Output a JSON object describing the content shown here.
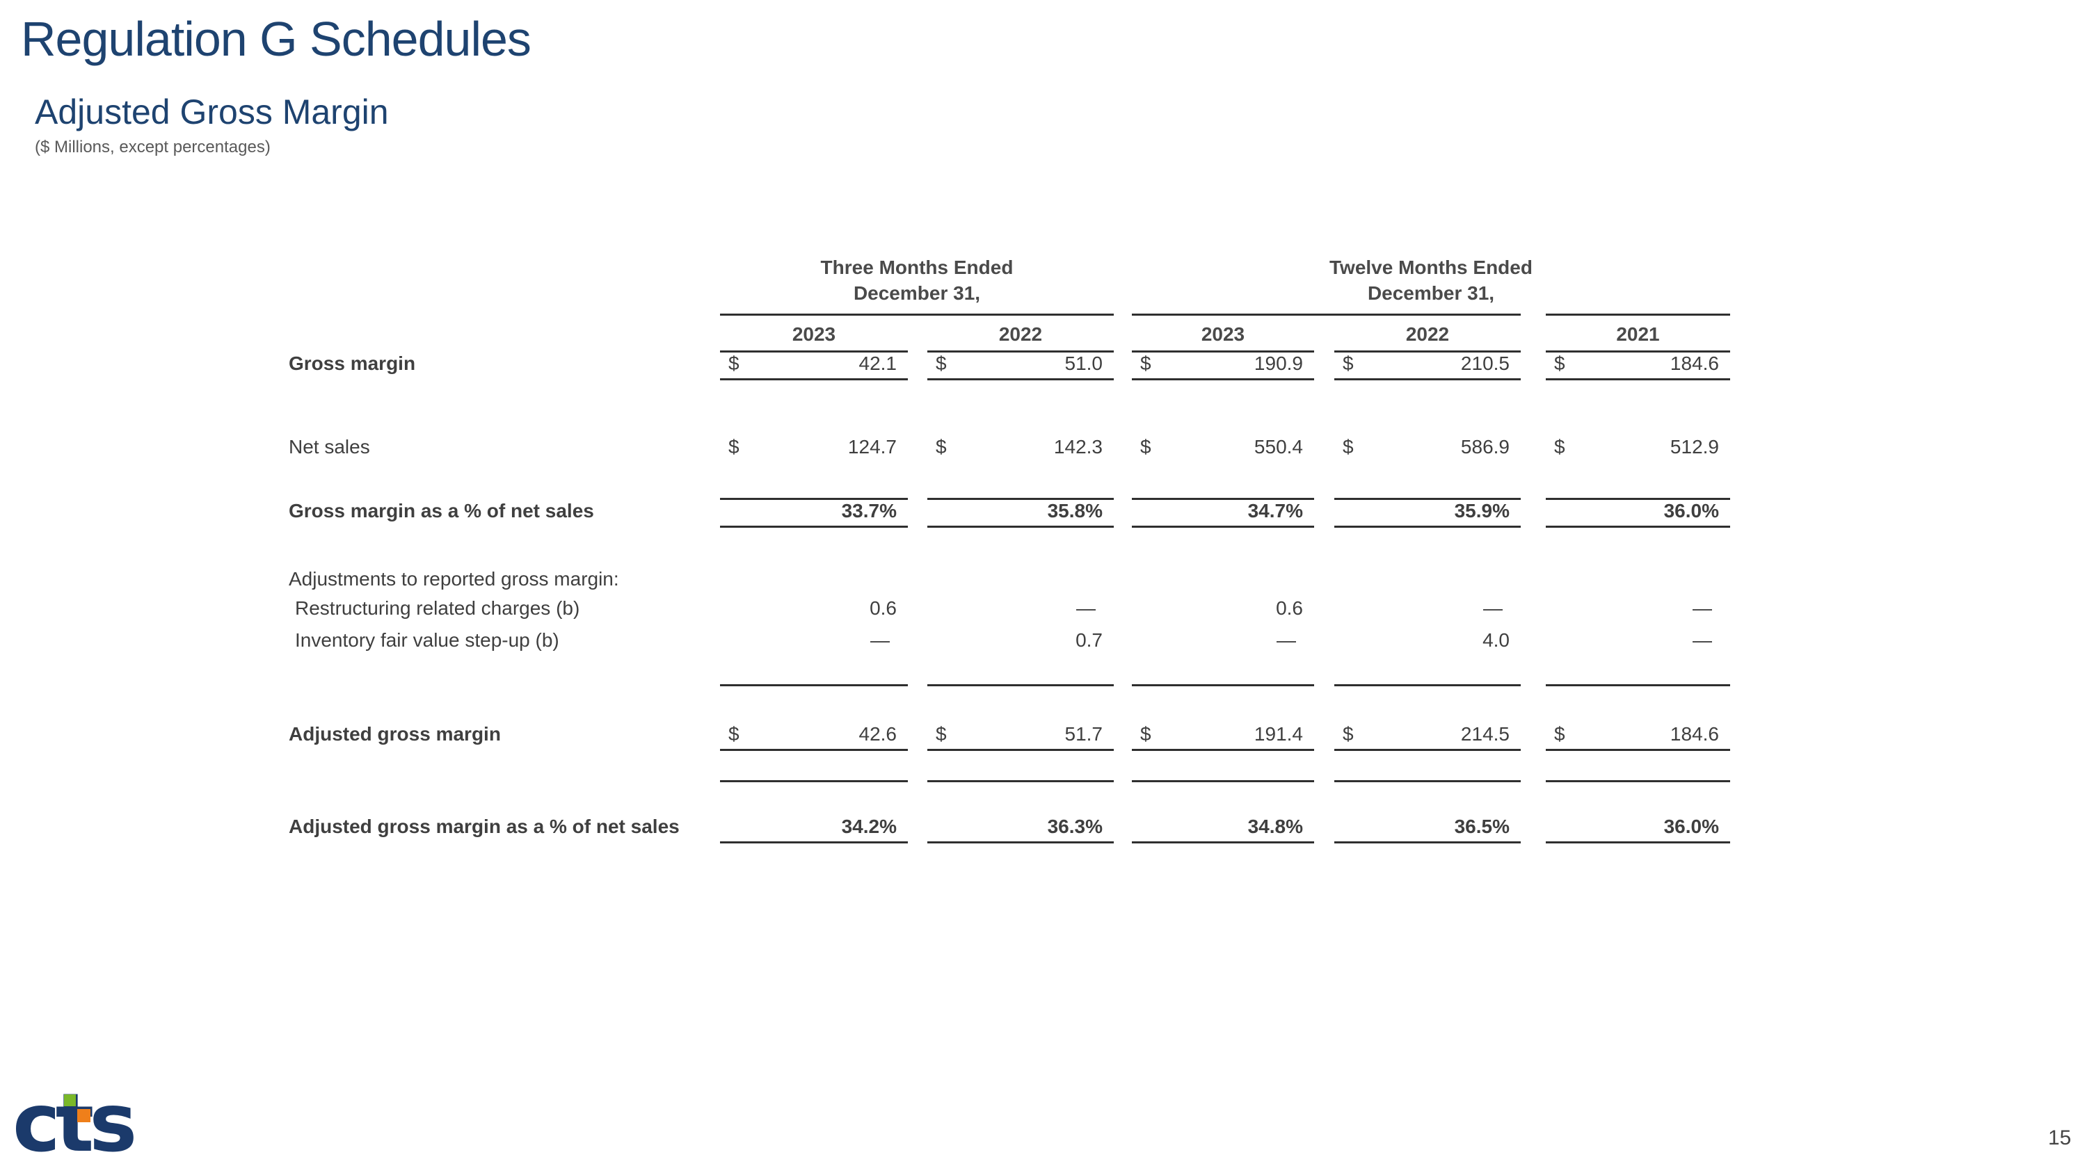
{
  "page": {
    "title": "Regulation G Schedules",
    "subtitle": "Adjusted Gross Margin",
    "units_note": "($ Millions, except percentages)",
    "page_number": "15"
  },
  "colors": {
    "heading_navy": "#1e4370",
    "table_text_gray": "#3f3f3f",
    "note_gray": "#595959",
    "rule_color": "#2f2f2f",
    "logo_navy": "#1b3a6b",
    "logo_green": "#7ab829",
    "logo_orange": "#ef7f1a"
  },
  "footer": {
    "logo_text": "cts"
  },
  "table": {
    "currency_symbol": "$",
    "groups": [
      {
        "line1": "Three Months Ended",
        "line2": "December 31,"
      },
      {
        "line1": "Twelve Months Ended",
        "line2": "December 31,"
      }
    ],
    "years": [
      "2023",
      "2022",
      "2023",
      "2022",
      "2021"
    ],
    "rows": [
      {
        "label": "Gross margin",
        "bold": true,
        "dollar": true,
        "underline": true,
        "h": 36,
        "values": [
          "42.1",
          "51.0",
          "190.9",
          "210.5",
          "184.6"
        ]
      },
      {
        "kind": "spacer",
        "h": 78
      },
      {
        "label": "Net sales",
        "dollar": true,
        "h": 46,
        "values": [
          "124.7",
          "142.3",
          "550.4",
          "586.9",
          "512.9"
        ]
      },
      {
        "kind": "spacer",
        "h": 40
      },
      {
        "label": "Gross margin as a % of net sales",
        "bold": true,
        "bold_values": true,
        "topline": true,
        "underline": true,
        "h": 52,
        "values": [
          "33.7%",
          "35.8%",
          "34.7%",
          "35.9%",
          "36.0%"
        ]
      },
      {
        "kind": "spacer",
        "h": 58
      },
      {
        "label": "Adjustments to reported gross margin:",
        "h": 38
      },
      {
        "label": "Restructuring related charges (b)",
        "indent": true,
        "h": 44,
        "values": [
          "0.6",
          "—",
          "0.6",
          "—",
          "—"
        ]
      },
      {
        "label": "Inventory fair value step-up (b)",
        "indent": true,
        "h": 46,
        "values": [
          "—",
          "0.7",
          "—",
          "4.0",
          "—"
        ]
      },
      {
        "kind": "spacer",
        "h": 42,
        "line": true
      },
      {
        "kind": "spacer",
        "h": 53
      },
      {
        "label": "Adjusted gross margin",
        "bold": true,
        "dollar": true,
        "underline": true,
        "h": 38,
        "values": [
          "42.6",
          "51.7",
          "191.4",
          "214.5",
          "184.6"
        ]
      },
      {
        "kind": "spacer",
        "h": 47,
        "line": true
      },
      {
        "kind": "spacer",
        "h": 44
      },
      {
        "label": "Adjusted gross margin as a % of net sales",
        "bold": true,
        "bold_values": true,
        "underline": true,
        "h": 44,
        "values": [
          "34.2%",
          "36.3%",
          "34.8%",
          "36.5%",
          "36.0%"
        ]
      }
    ]
  }
}
